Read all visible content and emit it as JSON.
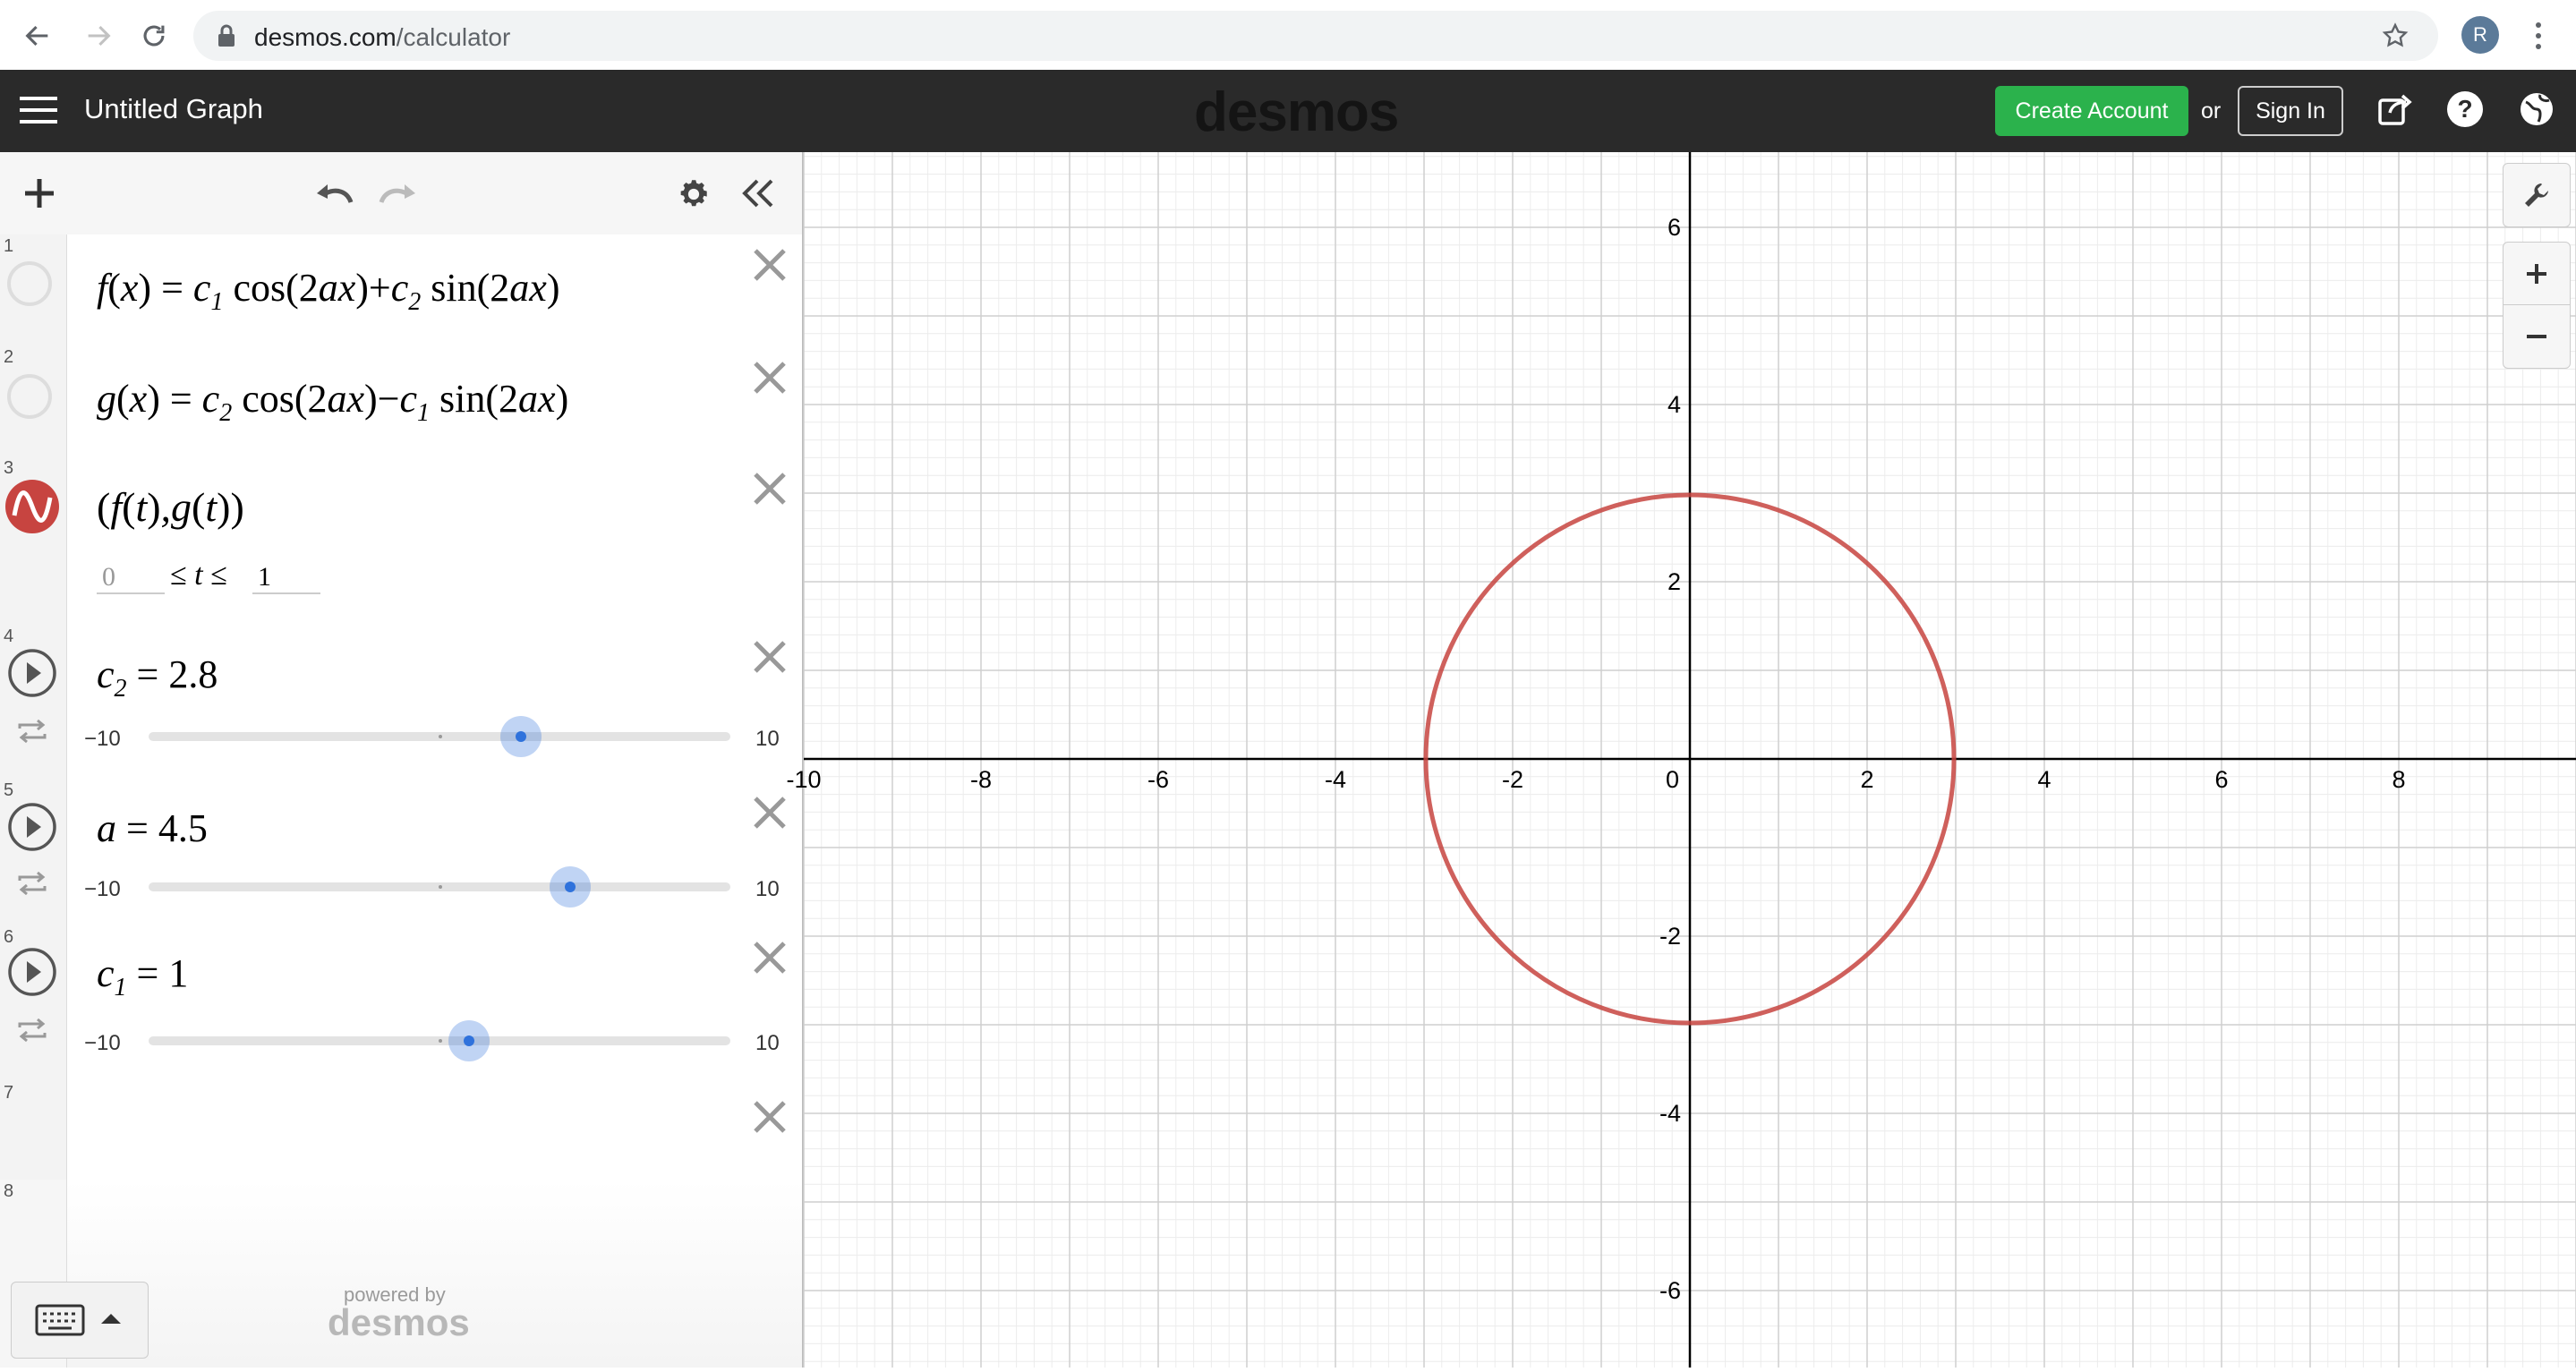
{
  "browser": {
    "url_domain": "desmos.com",
    "url_path": "/calculator",
    "profile_initial": "R"
  },
  "header": {
    "title": "Untitled Graph",
    "logo": "desmos",
    "create_account": "Create Account",
    "or": "or",
    "sign_in": "Sign In"
  },
  "expressions": [
    {
      "num": "1"
    },
    {
      "num": "2"
    },
    {
      "num": "3",
      "domain_min": "0",
      "domain_max": "1",
      "color": "#c74440"
    },
    {
      "num": "4",
      "slider_value": "2.8",
      "min": "−10",
      "max": "10",
      "value_fraction": 0.64
    },
    {
      "num": "5",
      "slider_value": "4.5",
      "min": "−10",
      "max": "10",
      "value_fraction": 0.725
    },
    {
      "num": "6",
      "slider_value": "1",
      "min": "−10",
      "max": "10",
      "value_fraction": 0.55
    },
    {
      "num": "7"
    },
    {
      "num": "8"
    }
  ],
  "footer": {
    "powered_by": "powered by",
    "brand": "desmos"
  },
  "graph": {
    "x_ticks": [
      "-10",
      "-8",
      "-6",
      "-4",
      "-2",
      "0",
      "2",
      "4",
      "6",
      "8"
    ],
    "y_ticks": [
      "6",
      "4",
      "2",
      "-2",
      "-4",
      "-6"
    ],
    "curve_color": "#c74440",
    "circle_radius": 2.98
  },
  "colors": {
    "header_bg": "#2a2a2a",
    "create_account": "#2bb24c",
    "slider_handle": "#2f72dc"
  }
}
